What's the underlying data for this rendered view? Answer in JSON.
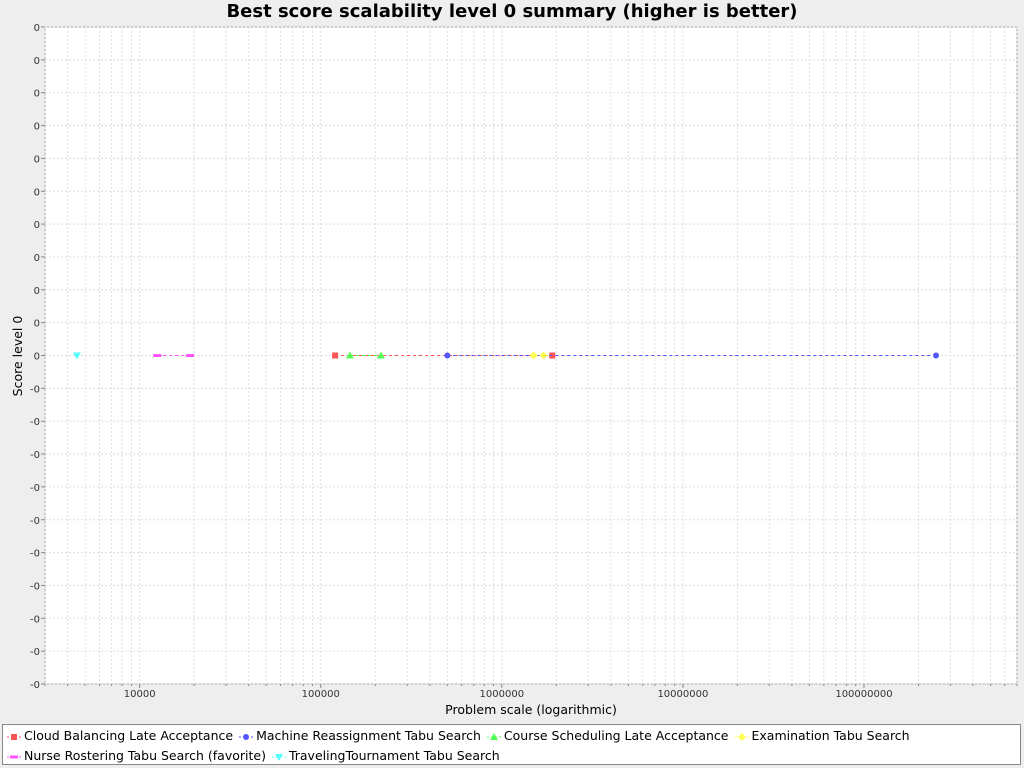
{
  "chart_data": {
    "type": "scatter",
    "title": "Best score scalability level 0 summary (higher is better)",
    "xlabel": "Problem scale (logarithmic)",
    "ylabel": "Score level 0",
    "x_scale": "log",
    "xlim": [
      3000,
      700000000
    ],
    "x_ticks": [
      10000,
      100000,
      1000000,
      10000000,
      100000000
    ],
    "x_tick_labels": [
      "10000",
      "100000",
      "1000000",
      "10000000",
      "100000000"
    ],
    "y_tick_labels": [
      "0",
      "0",
      "0",
      "0",
      "0",
      "0",
      "0",
      "0",
      "0",
      "0",
      "0",
      "-0",
      "-0",
      "-0",
      "-0",
      "-0",
      "-0",
      "-0",
      "-0",
      "-0",
      "-0"
    ],
    "y_ticks": [
      1e-05,
      9e-06,
      8e-06,
      7e-06,
      6e-06,
      5e-06,
      4e-06,
      3e-06,
      2e-06,
      1e-06,
      0,
      -1e-06,
      -2e-06,
      -3e-06,
      -4e-06,
      -5e-06,
      -6e-06,
      -7e-06,
      -8e-06,
      -9e-06,
      -1e-05
    ],
    "ylim": [
      -1e-05,
      1e-05
    ],
    "grid": true,
    "legend_position": "bottom",
    "series": [
      {
        "name": "Cloud Balancing Late Acceptance",
        "color": "#ff5555",
        "marker": "square",
        "x": [
          120000,
          1900000
        ],
        "y": [
          0,
          0
        ]
      },
      {
        "name": "Machine Reassignment Tabu Search",
        "color": "#5555ff",
        "marker": "circle",
        "x": [
          500000,
          250000000
        ],
        "y": [
          0,
          0
        ]
      },
      {
        "name": "Course Scheduling Late Acceptance",
        "color": "#55ff55",
        "marker": "triangle-up",
        "x": [
          145000,
          215000
        ],
        "y": [
          0,
          0
        ]
      },
      {
        "name": "Examination Tabu Search",
        "color": "#ffff55",
        "marker": "diamond",
        "x": [
          1500000,
          1700000
        ],
        "y": [
          0,
          0
        ]
      },
      {
        "name": "Nurse Rostering Tabu Search (favorite)",
        "color": "#ff55ff",
        "marker": "rect-wide",
        "x": [
          12500,
          19000
        ],
        "y": [
          0,
          0
        ]
      },
      {
        "name": "TravelingTournament Tabu Search",
        "color": "#55ffff",
        "marker": "triangle-down",
        "x": [
          4500
        ],
        "y": [
          0
        ]
      }
    ]
  }
}
